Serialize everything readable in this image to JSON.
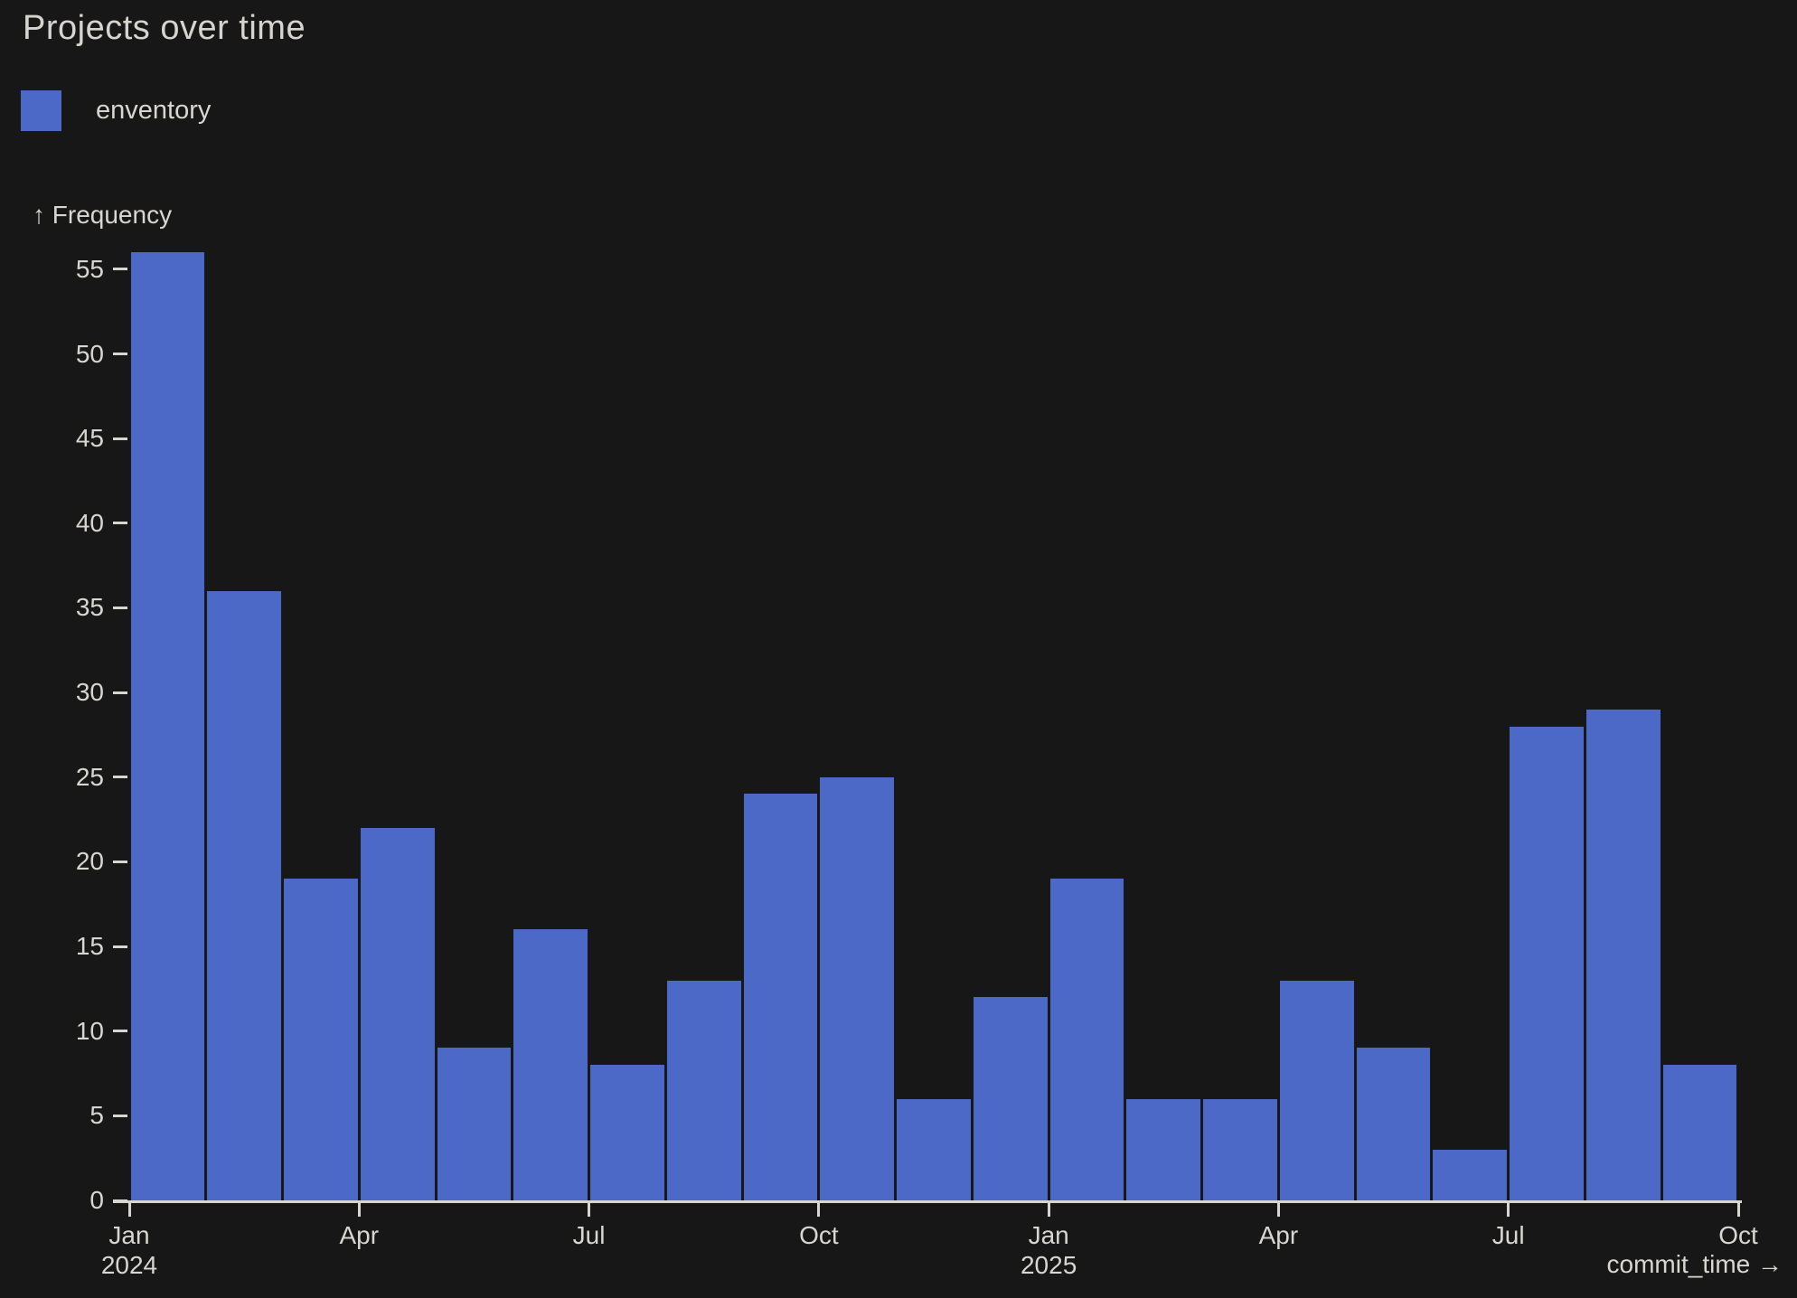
{
  "page": {
    "background_color": "#171717",
    "text_color": "#d8d6d0"
  },
  "header": {
    "title": "Projects over time"
  },
  "legend": {
    "items": [
      {
        "label": "enventory",
        "color": "#4c69c8"
      }
    ]
  },
  "chart_data": {
    "type": "bar",
    "title": "Projects over time",
    "xlabel": "commit_time",
    "ylabel": "Frequency",
    "y_axis_title": "↑ Frequency",
    "x_axis_title": "commit_time →",
    "bar_color": "#4c69c8",
    "grid": false,
    "legend_position": "top-left",
    "ylim": [
      0,
      56
    ],
    "yticks": [
      0,
      5,
      10,
      15,
      20,
      25,
      30,
      35,
      40,
      45,
      50,
      55
    ],
    "categories": [
      "Jan 2024",
      "Feb 2024",
      "Mar 2024",
      "Apr 2024",
      "May 2024",
      "Jun 2024",
      "Jul 2024",
      "Aug 2024",
      "Sep 2024",
      "Oct 2024",
      "Nov 2024",
      "Dec 2024",
      "Jan 2025",
      "Feb 2025",
      "Mar 2025",
      "Apr 2025",
      "May 2025",
      "Jun 2025",
      "Jul 2025",
      "Aug 2025",
      "Sep 2025"
    ],
    "values": [
      56,
      36,
      19,
      22,
      9,
      16,
      8,
      13,
      24,
      25,
      6,
      12,
      19,
      6,
      6,
      13,
      9,
      3,
      28,
      29,
      8
    ],
    "xticks": [
      {
        "index": 0,
        "label": "Jan",
        "year": "2024"
      },
      {
        "index": 3,
        "label": "Apr"
      },
      {
        "index": 6,
        "label": "Jul"
      },
      {
        "index": 9,
        "label": "Oct"
      },
      {
        "index": 12,
        "label": "Jan",
        "year": "2025"
      },
      {
        "index": 15,
        "label": "Apr"
      },
      {
        "index": 18,
        "label": "Jul"
      },
      {
        "index": 21,
        "label": "Oct"
      }
    ]
  }
}
